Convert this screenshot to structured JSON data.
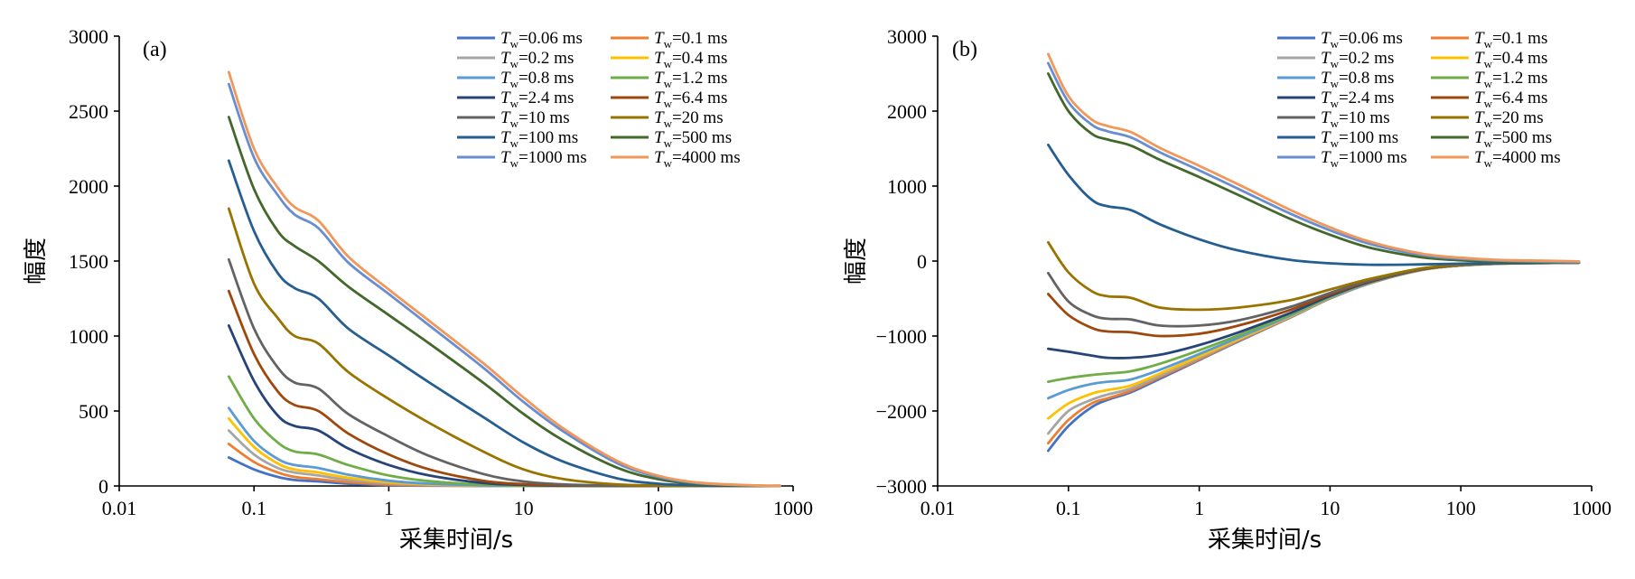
{
  "colors": {
    "0.06": "#4472c4",
    "0.1": "#ed7d31",
    "0.2": "#a5a5a5",
    "0.4": "#ffc000",
    "0.8": "#5b9bd5",
    "1.2": "#70ad47",
    "2.4": "#264478",
    "6.4": "#9e480e",
    "10": "#636363",
    "20": "#997300",
    "100": "#255e91",
    "500": "#43682b",
    "1000": "#698ed0",
    "4000": "#f1975a"
  },
  "chart_data": [
    {
      "type": "line",
      "panel_label": "(a)",
      "xlabel": "采集时间/s",
      "ylabel": "幅度",
      "xscale": "log",
      "xlim": [
        0.01,
        1000
      ],
      "ylim": [
        0,
        3000
      ],
      "xticks": [
        "0.01",
        "0.1",
        "1",
        "10",
        "100",
        "1000"
      ],
      "yticks": [
        "0",
        "500",
        "1000",
        "1500",
        "2000",
        "2500",
        "3000"
      ],
      "grid": false,
      "legend": "top-right, two columns",
      "x": [
        0.065,
        0.1,
        0.15,
        0.2,
        0.3,
        0.5,
        1,
        2,
        5,
        10,
        20,
        50,
        100,
        200,
        500,
        800
      ],
      "series": [
        {
          "name": "Tw=0.06 ms",
          "color_key": "0.06",
          "values": [
            190,
            110,
            60,
            40,
            30,
            15,
            5,
            2,
            0,
            0,
            0,
            0,
            0,
            0,
            0,
            0
          ]
        },
        {
          "name": "Tw=0.1 ms",
          "color_key": "0.1",
          "values": [
            280,
            160,
            90,
            60,
            45,
            25,
            10,
            4,
            1,
            0,
            0,
            0,
            0,
            0,
            0,
            0
          ]
        },
        {
          "name": "Tw=0.2 ms",
          "color_key": "0.2",
          "values": [
            370,
            210,
            120,
            90,
            70,
            40,
            18,
            7,
            2,
            1,
            0,
            0,
            0,
            0,
            0,
            0
          ]
        },
        {
          "name": "Tw=0.4 ms",
          "color_key": "0.4",
          "values": [
            450,
            260,
            150,
            110,
            90,
            55,
            25,
            10,
            3,
            1,
            0,
            0,
            0,
            0,
            0,
            0
          ]
        },
        {
          "name": "Tw=0.8 ms",
          "color_key": "0.8",
          "values": [
            520,
            300,
            180,
            140,
            120,
            75,
            35,
            15,
            4,
            1,
            0,
            0,
            0,
            0,
            0,
            0
          ]
        },
        {
          "name": "Tw=1.2 ms",
          "color_key": "1.2",
          "values": [
            730,
            450,
            290,
            230,
            210,
            140,
            70,
            32,
            9,
            3,
            1,
            0,
            0,
            0,
            0,
            0
          ]
        },
        {
          "name": "Tw=2.4 ms",
          "color_key": "2.4",
          "values": [
            1070,
            700,
            470,
            400,
            370,
            250,
            140,
            70,
            20,
            7,
            2,
            0,
            0,
            0,
            0,
            0
          ]
        },
        {
          "name": "Tw=6.4 ms",
          "color_key": "6.4",
          "values": [
            1300,
            880,
            630,
            540,
            500,
            350,
            210,
            110,
            35,
            12,
            4,
            1,
            0,
            0,
            0,
            0
          ]
        },
        {
          "name": "Tw=10 ms",
          "color_key": "10",
          "values": [
            1510,
            1050,
            790,
            690,
            650,
            480,
            330,
            200,
            80,
            30,
            10,
            2,
            0,
            0,
            0,
            0
          ]
        },
        {
          "name": "Tw=20 ms",
          "color_key": "20",
          "values": [
            1850,
            1350,
            1120,
            1000,
            950,
            760,
            580,
            420,
            230,
            110,
            45,
            10,
            3,
            1,
            0,
            0
          ]
        },
        {
          "name": "Tw=100 ms",
          "color_key": "100",
          "values": [
            2170,
            1700,
            1420,
            1320,
            1250,
            1050,
            870,
            690,
            460,
            290,
            160,
            50,
            15,
            4,
            1,
            0
          ]
        },
        {
          "name": "Tw=500 ms",
          "color_key": "500",
          "values": [
            2460,
            1980,
            1700,
            1600,
            1500,
            1330,
            1140,
            950,
            690,
            480,
            300,
            120,
            45,
            12,
            2,
            1
          ]
        },
        {
          "name": "Tw=1000 ms",
          "color_key": "1000",
          "values": [
            2680,
            2190,
            1940,
            1810,
            1720,
            1490,
            1280,
            1070,
            790,
            560,
            360,
            150,
            60,
            18,
            3,
            1
          ]
        },
        {
          "name": "Tw=4000 ms",
          "color_key": "4000",
          "values": [
            2760,
            2250,
            1990,
            1860,
            1770,
            1530,
            1310,
            1100,
            820,
            590,
            380,
            165,
            68,
            22,
            4,
            1
          ]
        }
      ]
    },
    {
      "type": "line",
      "panel_label": "(b)",
      "xlabel": "采集时间/s",
      "ylabel": "幅度",
      "xscale": "log",
      "xlim": [
        0.01,
        1000
      ],
      "ylim": [
        -3000,
        3000
      ],
      "xticks": [
        "0.01",
        "0.1",
        "1",
        "10",
        "100",
        "1000"
      ],
      "yticks": [
        "−3000",
        "−2000",
        "−1000",
        "0",
        "1000",
        "2000",
        "3000"
      ],
      "grid": false,
      "legend": "top-right, two columns",
      "x": [
        0.07,
        0.1,
        0.15,
        0.2,
        0.3,
        0.5,
        1,
        2,
        5,
        10,
        20,
        50,
        100,
        200,
        500,
        800
      ],
      "series": [
        {
          "name": "Tw=0.06 ms",
          "color_key": "0.06",
          "values": [
            -2530,
            -2200,
            -1950,
            -1850,
            -1750,
            -1570,
            -1320,
            -1070,
            -750,
            -500,
            -300,
            -120,
            -60,
            -35,
            -25,
            -20
          ]
        },
        {
          "name": "Tw=0.1 ms",
          "color_key": "0.1",
          "values": [
            -2430,
            -2120,
            -1900,
            -1830,
            -1730,
            -1550,
            -1310,
            -1060,
            -745,
            -495,
            -298,
            -120,
            -60,
            -35,
            -25,
            -20
          ]
        },
        {
          "name": "Tw=0.2 ms",
          "color_key": "0.2",
          "values": [
            -2300,
            -2000,
            -1850,
            -1780,
            -1700,
            -1530,
            -1290,
            -1050,
            -740,
            -490,
            -295,
            -118,
            -58,
            -34,
            -25,
            -20
          ]
        },
        {
          "name": "Tw=0.4 ms",
          "color_key": "0.4",
          "values": [
            -2100,
            -1900,
            -1770,
            -1720,
            -1660,
            -1500,
            -1270,
            -1040,
            -735,
            -488,
            -292,
            -117,
            -57,
            -34,
            -25,
            -20
          ]
        },
        {
          "name": "Tw=0.8 ms",
          "color_key": "0.8",
          "values": [
            -1830,
            -1720,
            -1640,
            -1610,
            -1580,
            -1450,
            -1240,
            -1020,
            -725,
            -483,
            -290,
            -116,
            -56,
            -33,
            -24,
            -20
          ]
        },
        {
          "name": "Tw=1.2 ms",
          "color_key": "1.2",
          "values": [
            -1610,
            -1560,
            -1520,
            -1500,
            -1470,
            -1370,
            -1190,
            -990,
            -710,
            -475,
            -285,
            -114,
            -55,
            -33,
            -24,
            -20
          ]
        },
        {
          "name": "Tw=2.4 ms",
          "color_key": "2.4",
          "values": [
            -1170,
            -1210,
            -1260,
            -1290,
            -1290,
            -1250,
            -1120,
            -950,
            -690,
            -465,
            -280,
            -112,
            -54,
            -32,
            -24,
            -20
          ]
        },
        {
          "name": "Tw=6.4 ms",
          "color_key": "6.4",
          "values": [
            -440,
            -720,
            -890,
            -940,
            -950,
            -1000,
            -970,
            -860,
            -650,
            -445,
            -270,
            -108,
            -52,
            -31,
            -23,
            -20
          ]
        },
        {
          "name": "Tw=10 ms",
          "color_key": "10",
          "values": [
            -160,
            -540,
            -720,
            -770,
            -780,
            -860,
            -860,
            -790,
            -610,
            -425,
            -260,
            -105,
            -50,
            -30,
            -23,
            -20
          ]
        },
        {
          "name": "Tw=20 ms",
          "color_key": "20",
          "values": [
            250,
            -150,
            -400,
            -470,
            -490,
            -620,
            -650,
            -620,
            -520,
            -380,
            -240,
            -98,
            -48,
            -29,
            -22,
            -20
          ]
        },
        {
          "name": "Tw=100 ms",
          "color_key": "100",
          "values": [
            1550,
            1150,
            820,
            730,
            680,
            490,
            290,
            140,
            15,
            -30,
            -50,
            -45,
            -35,
            -28,
            -22,
            -20
          ]
        },
        {
          "name": "Tw=500 ms",
          "color_key": "500",
          "values": [
            2500,
            2000,
            1700,
            1620,
            1540,
            1350,
            1120,
            880,
            560,
            350,
            180,
            50,
            10,
            -10,
            -18,
            -20
          ]
        },
        {
          "name": "Tw=1000 ms",
          "color_key": "1000",
          "values": [
            2640,
            2120,
            1820,
            1730,
            1650,
            1450,
            1210,
            960,
            630,
            410,
            230,
            80,
            30,
            5,
            -10,
            -15
          ]
        },
        {
          "name": "Tw=4000 ms",
          "color_key": "4000",
          "values": [
            2760,
            2200,
            1890,
            1800,
            1720,
            1510,
            1270,
            1020,
            680,
            450,
            260,
            100,
            45,
            15,
            2,
            -5
          ]
        }
      ]
    }
  ],
  "legend": {
    "col_left": [
      {
        "key": "0.06",
        "sym": "T",
        "sub": "w",
        "rest": "=0.06 ms"
      },
      {
        "key": "0.2",
        "sym": "T",
        "sub": "w",
        "rest": "=0.2 ms"
      },
      {
        "key": "0.8",
        "sym": "T",
        "sub": "w",
        "rest": "=0.8 ms"
      },
      {
        "key": "2.4",
        "sym": "T",
        "sub": "w",
        "rest": "=2.4 ms"
      },
      {
        "key": "10",
        "sym": "T",
        "sub": "w",
        "rest": "=10 ms"
      },
      {
        "key": "100",
        "sym": "T",
        "sub": "w",
        "rest": "=100 ms"
      },
      {
        "key": "1000",
        "sym": "T",
        "sub": "w",
        "rest": "=1000 ms"
      }
    ],
    "col_right": [
      {
        "key": "0.1",
        "sym": "T",
        "sub": "w",
        "rest": "=0.1 ms"
      },
      {
        "key": "0.4",
        "sym": "T",
        "sub": "w",
        "rest": "=0.4 ms"
      },
      {
        "key": "1.2",
        "sym": "T",
        "sub": "w",
        "rest": "=1.2 ms"
      },
      {
        "key": "6.4",
        "sym": "T",
        "sub": "w",
        "rest": "=6.4 ms"
      },
      {
        "key": "20",
        "sym": "T",
        "sub": "w",
        "rest": "=20 ms"
      },
      {
        "key": "500",
        "sym": "T",
        "sub": "w",
        "rest": "=500 ms"
      },
      {
        "key": "4000",
        "sym": "T",
        "sub": "w",
        "rest": "=4000 ms"
      }
    ]
  }
}
